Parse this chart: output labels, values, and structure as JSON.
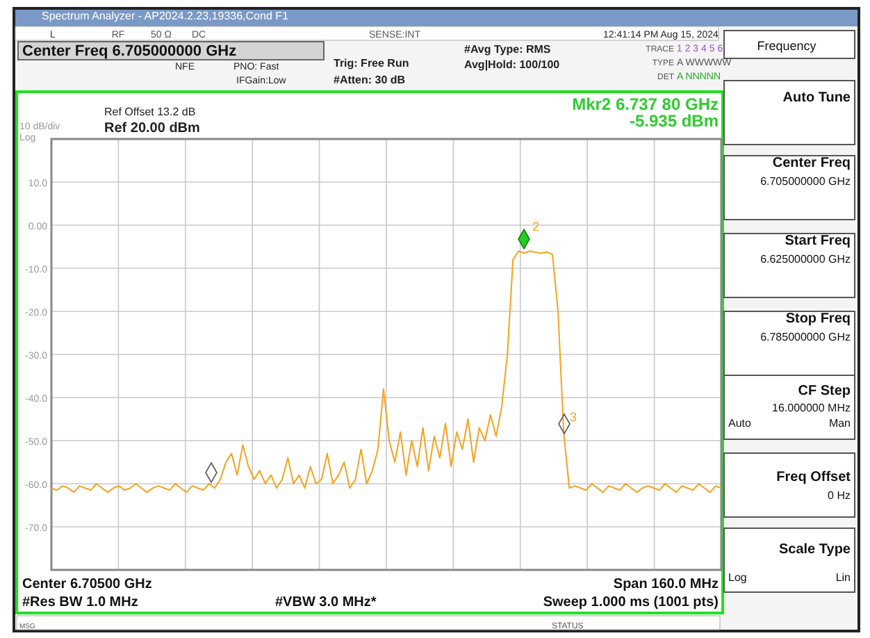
{
  "chart_data": {
    "type": "line",
    "title": "Center Freq 6.705000000 GHz",
    "categories": [
      null,
      null,
      null,
      null,
      null,
      null,
      null,
      null,
      null,
      null,
      null,
      null,
      null,
      null,
      null,
      null,
      null,
      null,
      null,
      null,
      null,
      null,
      null,
      null,
      null,
      null,
      null,
      null,
      null,
      null,
      null,
      null,
      null,
      null,
      null,
      null,
      null,
      null,
      null,
      null,
      null,
      null,
      null,
      null,
      null,
      null,
      null,
      null,
      null,
      null,
      null,
      null,
      null,
      null,
      null,
      null,
      null,
      null,
      null,
      null,
      null,
      null,
      null,
      null,
      null,
      null,
      null,
      null,
      null,
      null,
      null,
      null,
      null,
      null,
      null,
      null,
      null,
      null,
      null,
      null,
      null,
      null,
      null,
      null,
      null,
      null,
      null,
      null,
      null,
      null,
      null,
      null,
      null,
      null,
      null,
      null,
      null,
      null,
      null,
      null,
      null,
      null,
      null,
      null,
      null,
      null,
      null,
      null,
      null,
      null,
      null,
      null,
      null,
      null,
      null,
      null,
      null,
      null,
      null,
      null
    ],
    "series": [
      {
        "color": "#f5a31f",
        "values": [
          -61,
          -61.5,
          -60.5,
          -61,
          -62,
          -60.5,
          -61,
          -61.5,
          -60,
          -61,
          -62,
          -61,
          -60.5,
          -61.5,
          -61,
          -60,
          -61,
          -62,
          -61,
          -60.5,
          -61,
          -61.5,
          -60,
          -61,
          -62,
          -60.5,
          -61,
          -61.5,
          -60,
          -61,
          -59,
          -55,
          -53,
          -58,
          -51,
          -56,
          -59,
          -57,
          -60,
          -58,
          -61,
          -59,
          -54,
          -60,
          -58,
          -61,
          -56,
          -60,
          -59,
          -53,
          -60,
          -58,
          -55,
          -61,
          -59,
          -52,
          -60,
          -57,
          -52,
          -38,
          -50,
          -55,
          -48,
          -58,
          -50,
          -56,
          -47,
          -57,
          -49,
          -54,
          -46,
          -56,
          -48,
          -52,
          -45,
          -55,
          -47,
          -50,
          -44,
          -49,
          -42,
          -30,
          -8,
          -6,
          -6.5,
          -6,
          -6.3,
          -6.5,
          -6.2,
          -6.8,
          -20,
          -48,
          -61,
          -60.5,
          -61,
          -61.5,
          -60,
          -61,
          -62,
          -60.5,
          -61,
          -61.5,
          -60,
          -61,
          -62,
          -61,
          -60.5,
          -61,
          -61.5,
          -60,
          -61,
          -62,
          -60.5,
          -61,
          -61.5,
          -60,
          -61,
          -62,
          -60.5,
          -61
        ]
      }
    ],
    "ylim": [
      -80,
      20
    ],
    "yticks": [
      {
        "value": 10,
        "label": "10.0"
      },
      {
        "value": 0,
        "label": "0.00"
      },
      {
        "value": -10,
        "label": "-10.0"
      },
      {
        "value": -20,
        "label": "-20.0"
      },
      {
        "value": -30,
        "label": "-30.0"
      },
      {
        "value": -40,
        "label": "-40.0"
      },
      {
        "value": -50,
        "label": "-50.0"
      },
      {
        "value": -60,
        "label": "-60.0"
      },
      {
        "value": -70,
        "label": "-70.0"
      }
    ],
    "grid": true,
    "tick_labels": "y",
    "line_style": "solid",
    "marker": "none",
    "annotations": [
      "Spectrum Analyzer - AP2024.2.23,19336,Cond F1",
      "L",
      "RF",
      "50 Ω",
      "DC",
      "SENSE:INT",
      "12:41:14 PM Aug 15, 2024",
      "NFE",
      "PNO: Fast",
      "IFGain:Low",
      "Trig: Free Run",
      "#Atten: 30 dB",
      "#Avg Type: RMS",
      "Avg|Hold: 100/100",
      "TRACE",
      "1 2 3 4 5 6",
      "TYPE",
      "A WWWWW",
      "DET",
      "A NNNNN",
      "Ref Offset 13.2 dB",
      "Ref 20.00 dBm",
      "10 dB/div",
      "Log",
      "Mkr2 6.737 80 GHz",
      "-5.935 dBm",
      "2",
      "3",
      "Center 6.70500 GHz",
      "#Res BW 1.0 MHz",
      "#VBW 3.0 MHz*",
      "Span 160.0 MHz",
      "Sweep  1.000 ms (1001 pts)",
      "MSG",
      "STATUS",
      "Frequency",
      "Auto Tune",
      "Center Freq",
      "6.705000000 GHz",
      "Start Freq",
      "6.625000000 GHz",
      "Stop Freq",
      "6.785000000 GHz",
      "CF Step",
      "16.000000 MHz",
      "Auto",
      "Man",
      "Freq Offset",
      "0 Hz",
      "Scale Type",
      "Log",
      "Lin"
    ]
  }
}
